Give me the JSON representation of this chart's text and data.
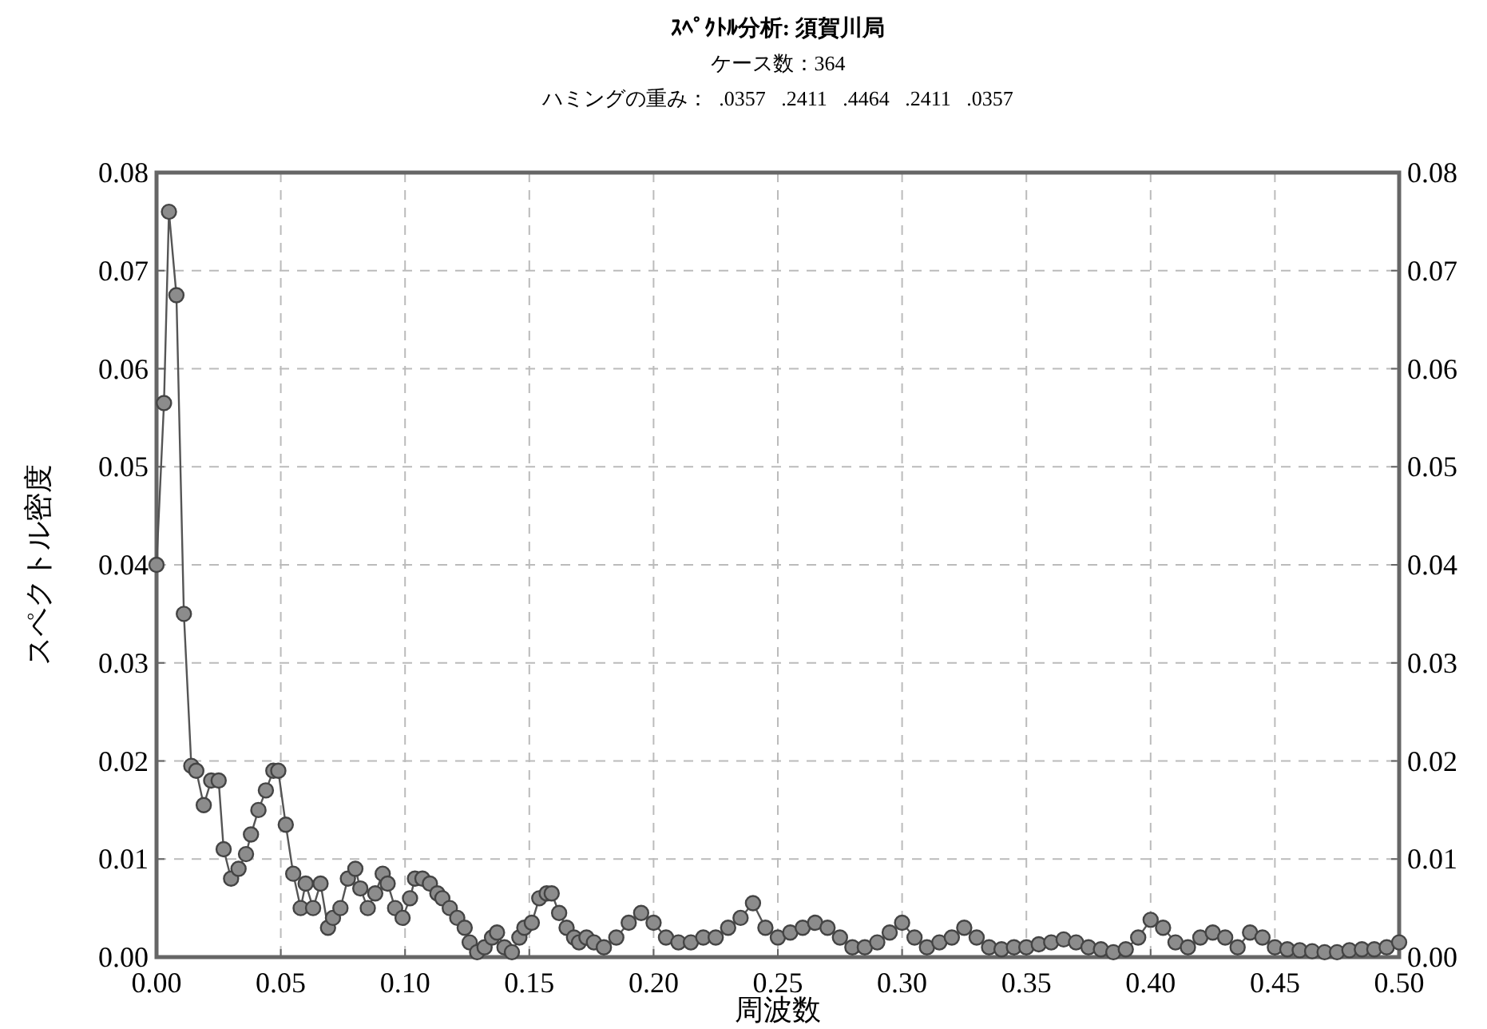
{
  "chart_data": {
    "type": "line",
    "title": "ｽﾍﾟｸﾄﾙ分析:  須賀川局",
    "subtitle": "ケース数：364",
    "annotations": [
      "ハミングの重み：  .0357   .2411   .4464   .2411   .0357"
    ],
    "xlabel": "周波数",
    "ylabel": "スペクトル密度",
    "x": [
      0.0,
      0.003,
      0.005,
      0.008,
      0.011,
      0.014,
      0.016,
      0.019,
      0.022,
      0.025,
      0.027,
      0.03,
      0.033,
      0.036,
      0.038,
      0.041,
      0.044,
      0.047,
      0.049,
      0.052,
      0.055,
      0.058,
      0.06,
      0.063,
      0.066,
      0.069,
      0.071,
      0.074,
      0.077,
      0.08,
      0.082,
      0.085,
      0.088,
      0.091,
      0.093,
      0.096,
      0.099,
      0.102,
      0.104,
      0.107,
      0.11,
      0.113,
      0.115,
      0.118,
      0.121,
      0.124,
      0.126,
      0.129,
      0.132,
      0.135,
      0.137,
      0.14,
      0.143,
      0.146,
      0.148,
      0.151,
      0.154,
      0.157,
      0.159,
      0.162,
      0.165,
      0.168,
      0.17,
      0.173,
      0.176,
      0.18,
      0.185,
      0.19,
      0.195,
      0.2,
      0.205,
      0.21,
      0.215,
      0.22,
      0.225,
      0.23,
      0.235,
      0.24,
      0.245,
      0.25,
      0.255,
      0.26,
      0.265,
      0.27,
      0.275,
      0.28,
      0.285,
      0.29,
      0.295,
      0.3,
      0.305,
      0.31,
      0.315,
      0.32,
      0.325,
      0.33,
      0.335,
      0.34,
      0.345,
      0.35,
      0.355,
      0.36,
      0.365,
      0.37,
      0.375,
      0.38,
      0.385,
      0.39,
      0.395,
      0.4,
      0.405,
      0.41,
      0.415,
      0.42,
      0.425,
      0.43,
      0.435,
      0.44,
      0.445,
      0.45,
      0.455,
      0.46,
      0.465,
      0.47,
      0.475,
      0.48,
      0.485,
      0.49,
      0.495,
      0.5
    ],
    "series": [
      {
        "color": "#8c8c8c",
        "values": [
          0.04,
          0.0565,
          0.076,
          0.0675,
          0.035,
          0.0195,
          0.019,
          0.0155,
          0.018,
          0.018,
          0.011,
          0.008,
          0.009,
          0.0105,
          0.0125,
          0.015,
          0.017,
          0.019,
          0.019,
          0.0135,
          0.0085,
          0.005,
          0.0075,
          0.005,
          0.0075,
          0.003,
          0.004,
          0.005,
          0.008,
          0.009,
          0.007,
          0.005,
          0.0065,
          0.0085,
          0.0075,
          0.005,
          0.004,
          0.006,
          0.008,
          0.008,
          0.0075,
          0.0065,
          0.006,
          0.005,
          0.004,
          0.003,
          0.0015,
          0.0005,
          0.001,
          0.002,
          0.0025,
          0.001,
          0.0005,
          0.002,
          0.003,
          0.0035,
          0.006,
          0.0065,
          0.0065,
          0.0045,
          0.003,
          0.002,
          0.0015,
          0.002,
          0.0015,
          0.001,
          0.002,
          0.0035,
          0.0045,
          0.0035,
          0.002,
          0.0015,
          0.0015,
          0.002,
          0.002,
          0.003,
          0.004,
          0.0055,
          0.003,
          0.002,
          0.0025,
          0.003,
          0.0035,
          0.003,
          0.002,
          0.001,
          0.001,
          0.0015,
          0.0025,
          0.0035,
          0.002,
          0.001,
          0.0015,
          0.002,
          0.003,
          0.002,
          0.001,
          0.0008,
          0.001,
          0.001,
          0.0013,
          0.0015,
          0.0018,
          0.0015,
          0.001,
          0.0008,
          0.0005,
          0.0008,
          0.002,
          0.0038,
          0.003,
          0.0015,
          0.001,
          0.002,
          0.0025,
          0.002,
          0.001,
          0.0025,
          0.002,
          0.001,
          0.0008,
          0.0007,
          0.0006,
          0.0005,
          0.0005,
          0.0007,
          0.0008,
          0.0008,
          0.001,
          0.0015
        ]
      }
    ],
    "xlim": [
      0,
      0.5
    ],
    "ylim": [
      0,
      0.08
    ],
    "xticks": [
      {
        "value": 0,
        "label": "0.00"
      },
      {
        "value": 0.05,
        "label": "0.05"
      },
      {
        "value": 0.1,
        "label": "0.10"
      },
      {
        "value": 0.15,
        "label": "0.15"
      },
      {
        "value": 0.2,
        "label": "0.20"
      },
      {
        "value": 0.25,
        "label": "0.25"
      },
      {
        "value": 0.3,
        "label": "0.30"
      },
      {
        "value": 0.35,
        "label": "0.35"
      },
      {
        "value": 0.4,
        "label": "0.40"
      },
      {
        "value": 0.45,
        "label": "0.45"
      },
      {
        "value": 0.5,
        "label": "0.50"
      }
    ],
    "yticks": [
      {
        "value": 0,
        "label": "0.00"
      },
      {
        "value": 0.01,
        "label": "0.01"
      },
      {
        "value": 0.02,
        "label": "0.02"
      },
      {
        "value": 0.03,
        "label": "0.03"
      },
      {
        "value": 0.04,
        "label": "0.04"
      },
      {
        "value": 0.05,
        "label": "0.05"
      },
      {
        "value": 0.06,
        "label": "0.06"
      },
      {
        "value": 0.07,
        "label": "0.07"
      },
      {
        "value": 0.08,
        "label": "0.08"
      }
    ],
    "y2lim": [
      0,
      0.08
    ],
    "y2ticks": [
      {
        "value": 0,
        "label": "0.00"
      },
      {
        "value": 0.01,
        "label": "0.01"
      },
      {
        "value": 0.02,
        "label": "0.02"
      },
      {
        "value": 0.03,
        "label": "0.03"
      },
      {
        "value": 0.04,
        "label": "0.04"
      },
      {
        "value": 0.05,
        "label": "0.05"
      },
      {
        "value": 0.06,
        "label": "0.06"
      },
      {
        "value": 0.07,
        "label": "0.07"
      },
      {
        "value": 0.08,
        "label": "0.08"
      }
    ],
    "grid": true,
    "marker": "circle"
  }
}
